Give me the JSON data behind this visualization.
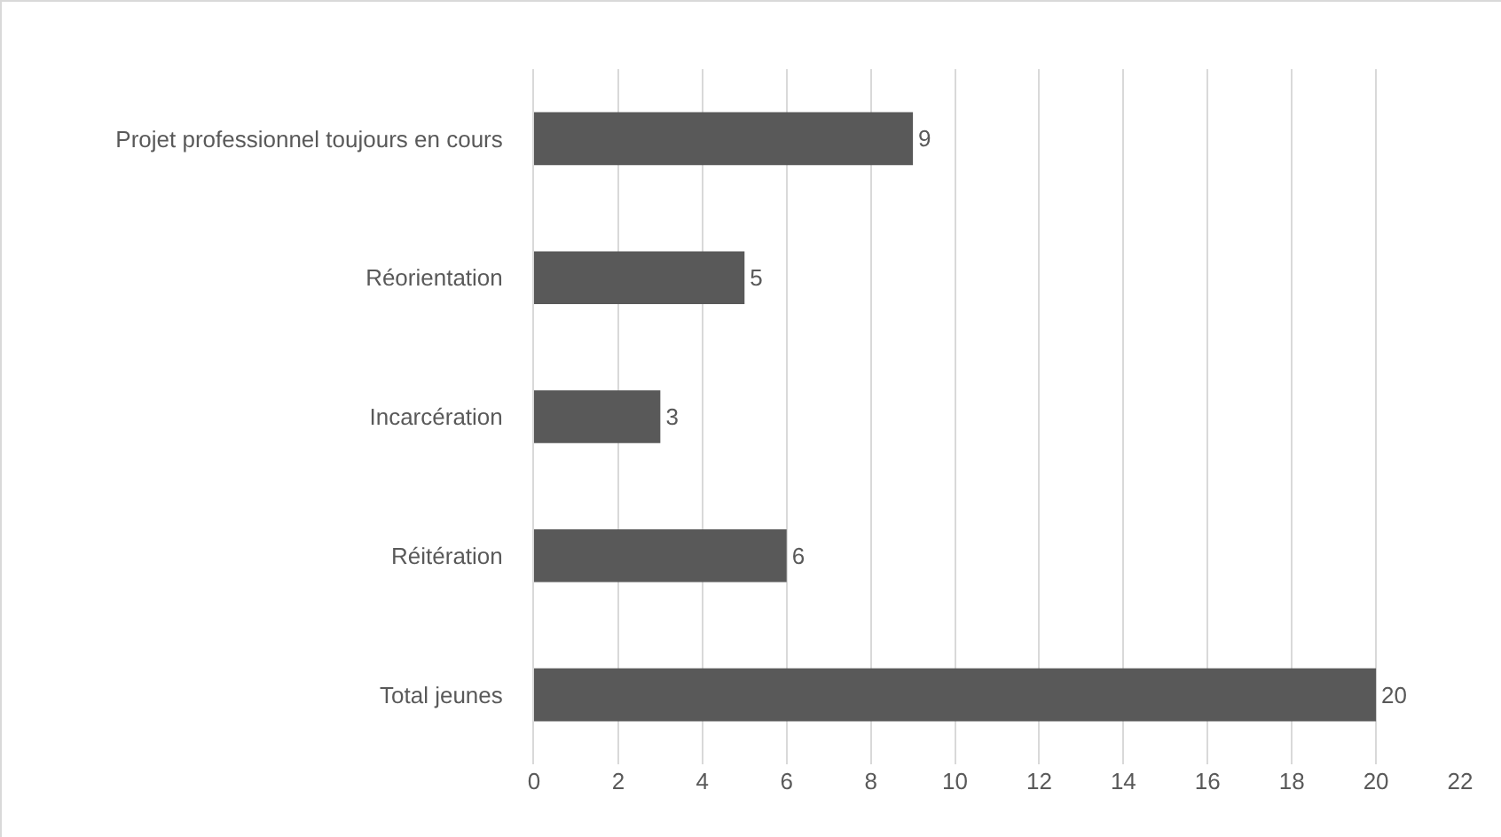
{
  "chart_data": {
    "type": "bar",
    "orientation": "horizontal",
    "categories": [
      "Projet professionnel toujours en cours",
      "Réorientation",
      "Incarcération",
      "Réitération",
      "Total jeunes"
    ],
    "values": [
      9,
      5,
      3,
      6,
      20
    ],
    "color": "#595959",
    "data_labels": true,
    "xlim": [
      0,
      22
    ],
    "xticks": [
      0,
      2,
      4,
      6,
      8,
      10,
      12,
      14,
      16,
      18,
      20,
      22
    ],
    "grid": "x"
  }
}
